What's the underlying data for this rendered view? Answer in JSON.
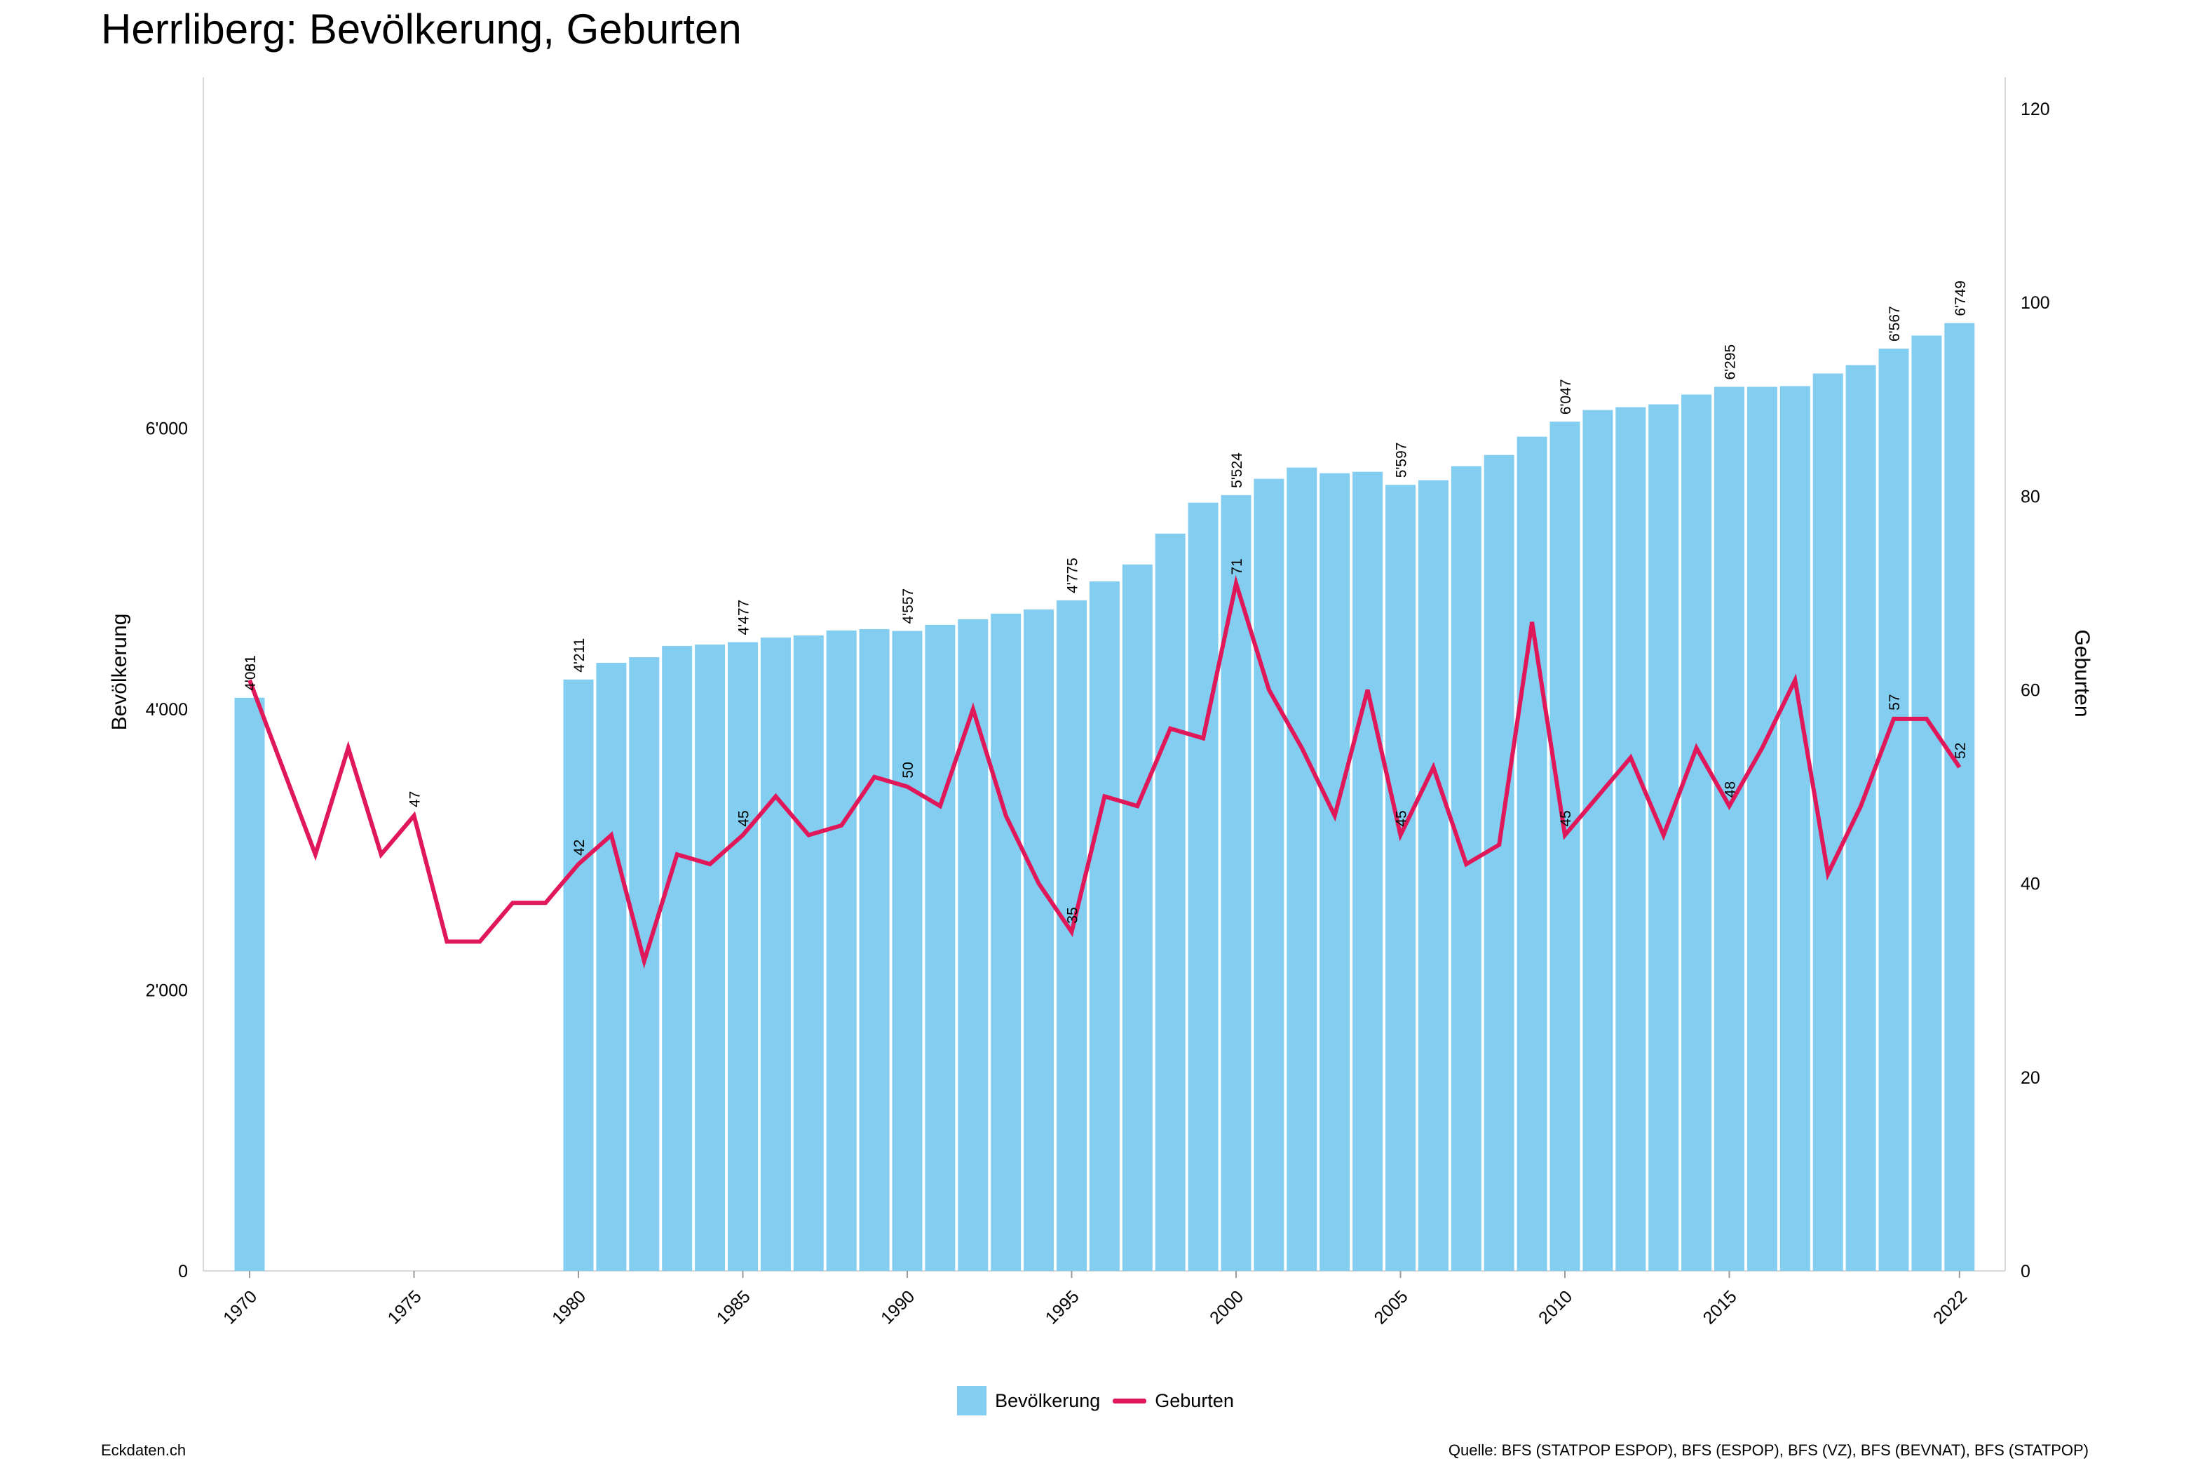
{
  "title": "Herrliberg: Bevölkerung, Geburten",
  "footer": {
    "left": "Eckdaten.ch",
    "right": "Quelle: BFS (STATPOP ESPOP), BFS (ESPOP), BFS (VZ), BFS (BEVNAT), BFS (STATPOP)"
  },
  "colors": {
    "bar": "#82CDF0",
    "line": "#E0185A",
    "grid": "#d9d9d9"
  },
  "chart_data": {
    "type": "bar",
    "x": [
      1970,
      1971,
      1972,
      1973,
      1974,
      1975,
      1976,
      1977,
      1978,
      1979,
      1980,
      1981,
      1982,
      1983,
      1984,
      1985,
      1986,
      1987,
      1988,
      1989,
      1990,
      1991,
      1992,
      1993,
      1994,
      1995,
      1996,
      1997,
      1998,
      1999,
      2000,
      2001,
      2002,
      2003,
      2004,
      2005,
      2006,
      2007,
      2008,
      2009,
      2010,
      2011,
      2012,
      2013,
      2014,
      2015,
      2016,
      2017,
      2018,
      2019,
      2020,
      2021,
      2022
    ],
    "x_tick_labels": [
      "1970",
      "1975",
      "1980",
      "1985",
      "1990",
      "1995",
      "2000",
      "2005",
      "2010",
      "2015",
      "2022"
    ],
    "x_tick_values": [
      1970,
      1975,
      1980,
      1985,
      1990,
      1995,
      2000,
      2005,
      2010,
      2015,
      2022
    ],
    "series": [
      {
        "name": "Bevölkerung",
        "type": "bar",
        "axis": "left",
        "values": [
          4081,
          null,
          null,
          null,
          null,
          null,
          null,
          null,
          null,
          null,
          4211,
          4330,
          4370,
          4450,
          4460,
          4477,
          4510,
          4525,
          4560,
          4570,
          4557,
          4600,
          4640,
          4680,
          4710,
          4775,
          4910,
          5030,
          5250,
          5470,
          5524,
          5640,
          5720,
          5680,
          5690,
          5597,
          5630,
          5730,
          5810,
          5940,
          6047,
          6130,
          6150,
          6170,
          6240,
          6295,
          6295,
          6300,
          6390,
          6450,
          6567,
          6660,
          6749
        ],
        "labels": [
          {
            "x": 1970,
            "text": "4'081"
          },
          {
            "x": 1980,
            "text": "4'211"
          },
          {
            "x": 1985,
            "text": "4'477"
          },
          {
            "x": 1990,
            "text": "4'557"
          },
          {
            "x": 1995,
            "text": "4'775"
          },
          {
            "x": 2000,
            "text": "5'524"
          },
          {
            "x": 2005,
            "text": "5'597"
          },
          {
            "x": 2010,
            "text": "6'047"
          },
          {
            "x": 2015,
            "text": "6'295"
          },
          {
            "x": 2020,
            "text": "6'567"
          },
          {
            "x": 2022,
            "text": "6'749"
          }
        ]
      },
      {
        "name": "Geburten",
        "type": "line",
        "axis": "right",
        "values": [
          61,
          52,
          43,
          54,
          43,
          47,
          34,
          34,
          38,
          38,
          42,
          45,
          32,
          43,
          42,
          45,
          49,
          45,
          46,
          51,
          50,
          48,
          58,
          47,
          40,
          35,
          49,
          48,
          56,
          55,
          71,
          60,
          54,
          47,
          60,
          45,
          52,
          42,
          44,
          67,
          45,
          49,
          53,
          45,
          54,
          48,
          54,
          61,
          41,
          48,
          57,
          57,
          52
        ],
        "labels": [
          {
            "x": 1970,
            "text": "61"
          },
          {
            "x": 1975,
            "text": "47"
          },
          {
            "x": 1980,
            "text": "42"
          },
          {
            "x": 1985,
            "text": "45"
          },
          {
            "x": 1990,
            "text": "50"
          },
          {
            "x": 1995,
            "text": "35"
          },
          {
            "x": 2000,
            "text": "71"
          },
          {
            "x": 2005,
            "text": "45"
          },
          {
            "x": 2010,
            "text": "45"
          },
          {
            "x": 2015,
            "text": "48"
          },
          {
            "x": 2020,
            "text": "57"
          },
          {
            "x": 2022,
            "text": "52"
          }
        ]
      }
    ],
    "y_left": {
      "label": "Bevölkerung",
      "min": 0,
      "max": 8500,
      "ticks": [
        0,
        2000,
        4000,
        6000
      ],
      "tick_labels": [
        "0",
        "2'000",
        "4'000",
        "6'000"
      ]
    },
    "y_right": {
      "label": "Geburten",
      "min": 0,
      "max": 120,
      "ticks": [
        0,
        20,
        40,
        60,
        80,
        100,
        120
      ],
      "tick_labels": [
        "0",
        "20",
        "40",
        "60",
        "80",
        "100",
        "120"
      ]
    },
    "grid": false,
    "legend": {
      "position": "bottom-center",
      "entries": [
        "Bevölkerung",
        "Geburten"
      ]
    }
  }
}
